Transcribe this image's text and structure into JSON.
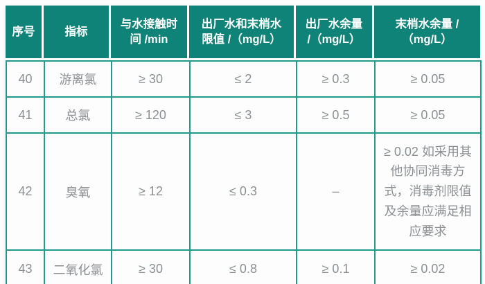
{
  "colors": {
    "header_bg": "#0f8377",
    "header_text": "#ffffff",
    "grid_border": "#1f9b8b",
    "body_text": "#8c9093",
    "page_bg": "#fdfdfd"
  },
  "table": {
    "headers": [
      "序号",
      "指标",
      "与水接触时\n间 /min",
      "出厂水和末梢水\n限值 /（mg/L）",
      "出厂水余量\n/（mg/L）",
      "末梢水余量 /\n（mg/L）"
    ],
    "rows": [
      {
        "cells": [
          "40",
          "游离氯",
          "≥ 30",
          "≤ 2",
          "≥ 0.3",
          "≥ 0.05"
        ]
      },
      {
        "cells": [
          "41",
          "总氯",
          "≥ 120",
          "≤ 3",
          "≥ 0.5",
          "≥ 0.05"
        ]
      },
      {
        "cells": [
          "42",
          "臭氧",
          "≥ 12",
          "≤ 0.3",
          "–",
          "≥ 0.02 如采用其他协同消毒方式，消毒剂限值及余量应满足相应要求"
        ]
      },
      {
        "cells": [
          "43",
          "二氧化氯",
          "≥ 30",
          "≤ 0.8",
          "≥ 0.1",
          "≥ 0.02"
        ]
      }
    ]
  }
}
